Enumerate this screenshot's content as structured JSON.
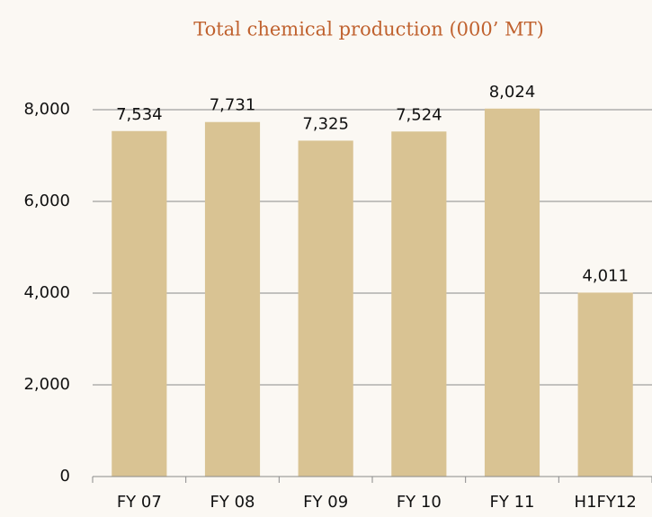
{
  "chart_data": {
    "type": "bar",
    "title": "Total chemical production (000’ MT)",
    "categories": [
      "FY 07",
      "FY 08",
      "FY 09",
      "FY 10",
      "FY 11",
      "H1FY12"
    ],
    "values": [
      7534,
      7731,
      7325,
      7524,
      8024,
      4011
    ],
    "value_labels": [
      "7,534",
      "7,731",
      "7,325",
      "7,524",
      "8,024",
      "4,011"
    ],
    "color": "#d9c393",
    "ylim": [
      0,
      8000
    ],
    "yticks": [
      0,
      {
        "value": 2000,
        "label": "2,000"
      },
      {
        "value": 4000,
        "label": "4,000"
      },
      {
        "value": 6000,
        "label": "6,000"
      },
      {
        "value": 8000,
        "label": "8,000"
      }
    ],
    "grid": true
  }
}
